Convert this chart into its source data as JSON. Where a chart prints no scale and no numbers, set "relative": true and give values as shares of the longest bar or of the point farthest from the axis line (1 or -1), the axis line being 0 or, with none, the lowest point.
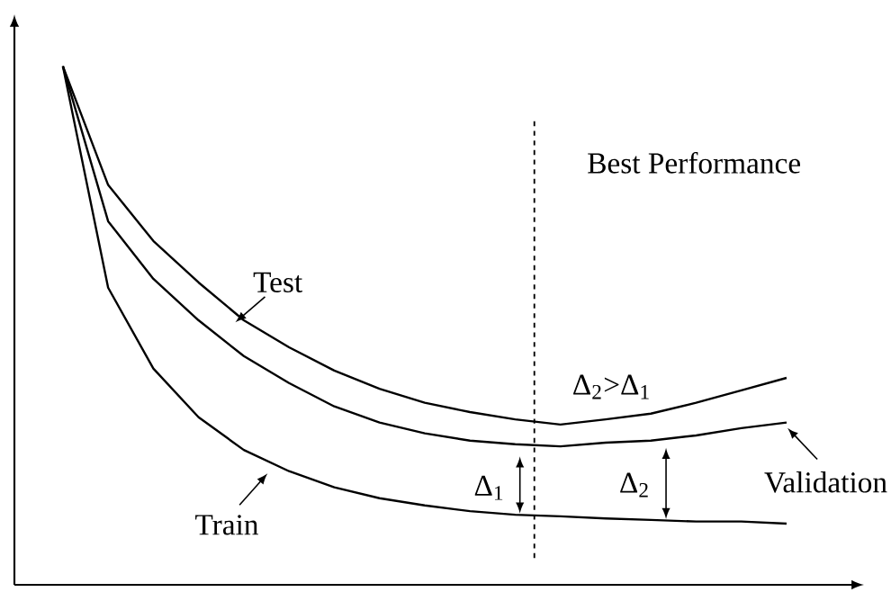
{
  "chart_data": {
    "type": "line",
    "relative": true,
    "marker": "none",
    "categories": [
      null,
      null,
      null,
      null,
      null,
      null,
      null,
      null,
      null,
      null,
      null,
      null,
      null,
      null,
      null,
      null,
      null
    ],
    "series": [
      {
        "color": "#000000",
        "values": [
          1,
          0.771,
          0.663,
          0.583,
          0.51,
          0.458,
          0.413,
          0.378,
          0.351,
          0.333,
          0.319,
          0.309,
          0.319,
          0.33,
          0.351,
          0.375,
          0.399
        ]
      },
      {
        "color": "#000000",
        "values": [
          1,
          0.701,
          0.59,
          0.51,
          0.441,
          0.389,
          0.344,
          0.313,
          0.292,
          0.278,
          0.271,
          0.267,
          0.274,
          0.278,
          0.288,
          0.302,
          0.313
        ]
      },
      {
        "color": "#000000",
        "values": [
          1,
          0.573,
          0.417,
          0.323,
          0.26,
          0.219,
          0.188,
          0.167,
          0.153,
          0.142,
          0.135,
          0.132,
          0.128,
          0.125,
          0.122,
          0.122,
          0.118
        ]
      }
    ],
    "annotations": [
      "Test",
      "Validation",
      "Train",
      "Δ$_{2}$>Δ$_{1}$",
      "Δ$_{1}$",
      "Δ$_{2}$",
      "Best Performance"
    ]
  }
}
